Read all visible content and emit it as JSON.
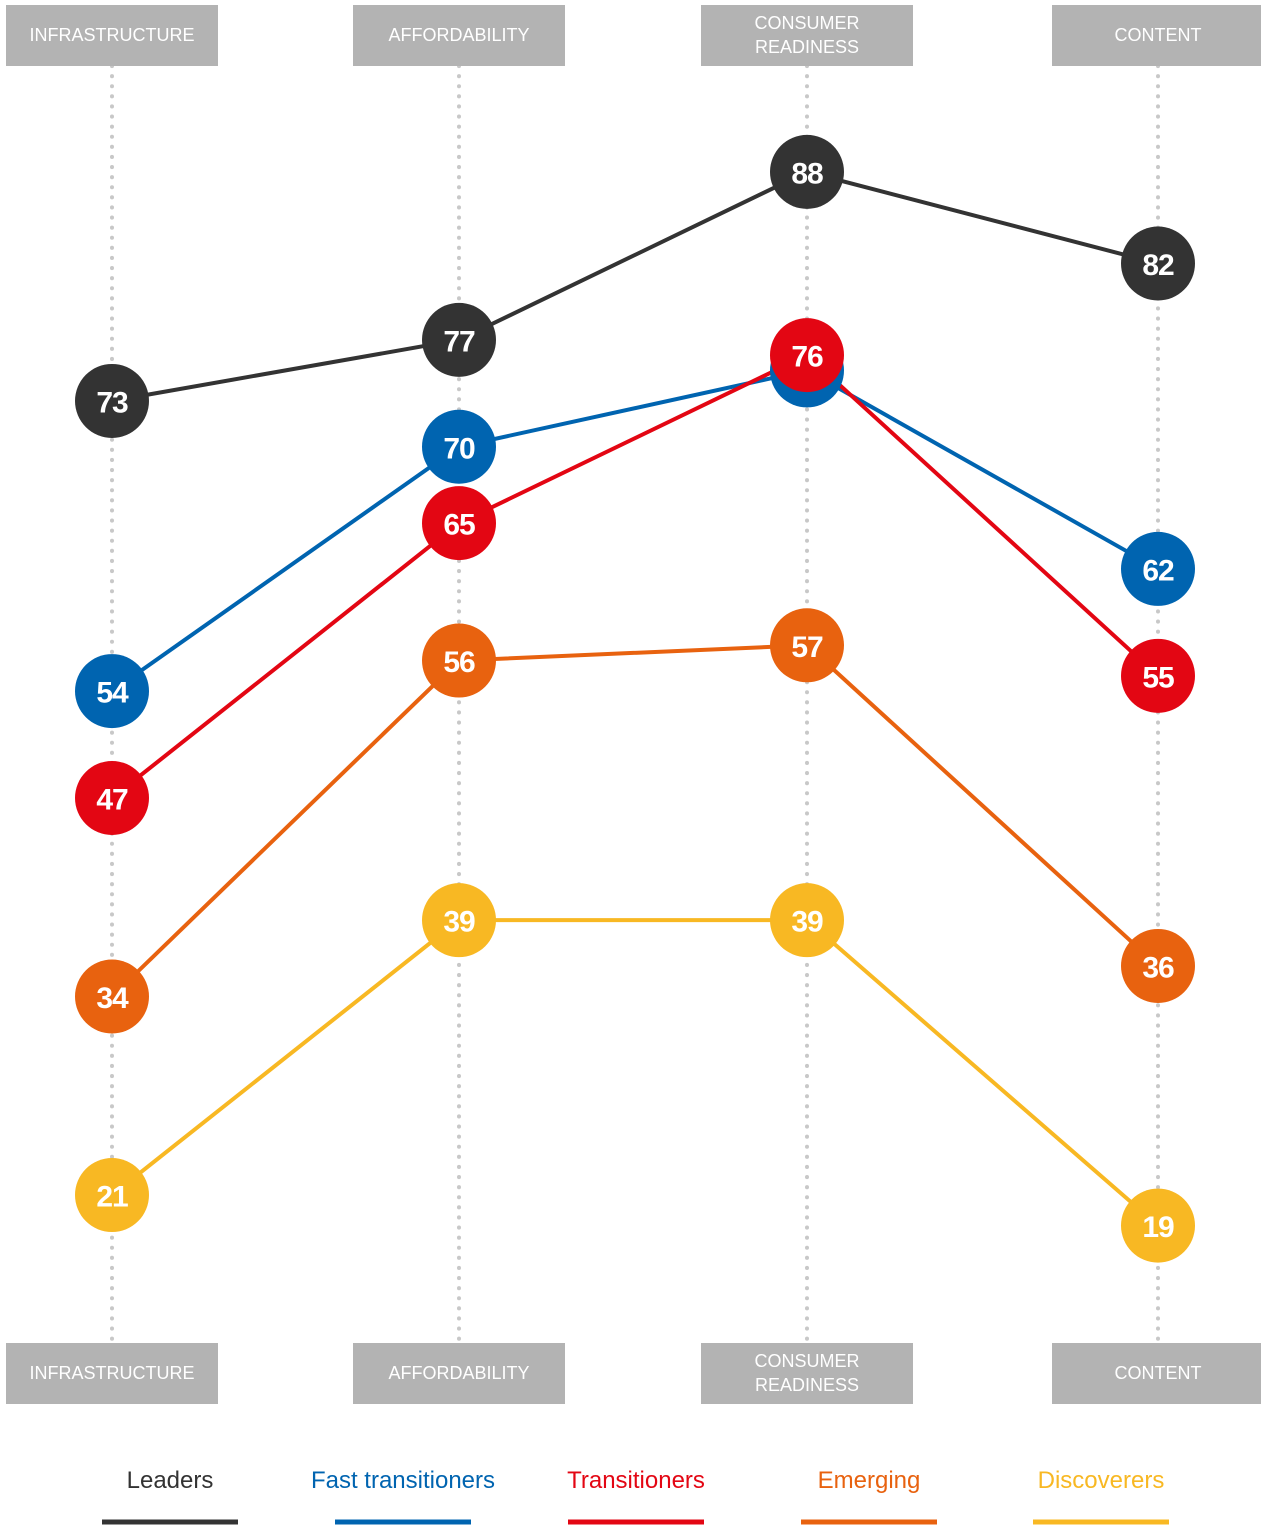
{
  "chart_data": {
    "type": "line",
    "categories": [
      "INFRASTRUCTURE",
      "AFFORDABILITY",
      "CONSUMER READINESS",
      "CONTENT"
    ],
    "series": [
      {
        "name": "Leaders",
        "color": "#333333",
        "values": [
          73,
          77,
          88,
          82
        ]
      },
      {
        "name": "Fast transitioners",
        "color": "#0064b0",
        "values": [
          54,
          70,
          75,
          62
        ]
      },
      {
        "name": "Transitioners",
        "color": "#e30613",
        "values": [
          47,
          65,
          76,
          55
        ]
      },
      {
        "name": "Emerging",
        "color": "#e8620f",
        "values": [
          34,
          56,
          57,
          36
        ]
      },
      {
        "name": "Discoverers",
        "color": "#f8b823",
        "values": [
          21,
          39,
          39,
          19
        ]
      }
    ],
    "ylim": [
      10,
      95
    ],
    "legend": "bottom"
  }
}
